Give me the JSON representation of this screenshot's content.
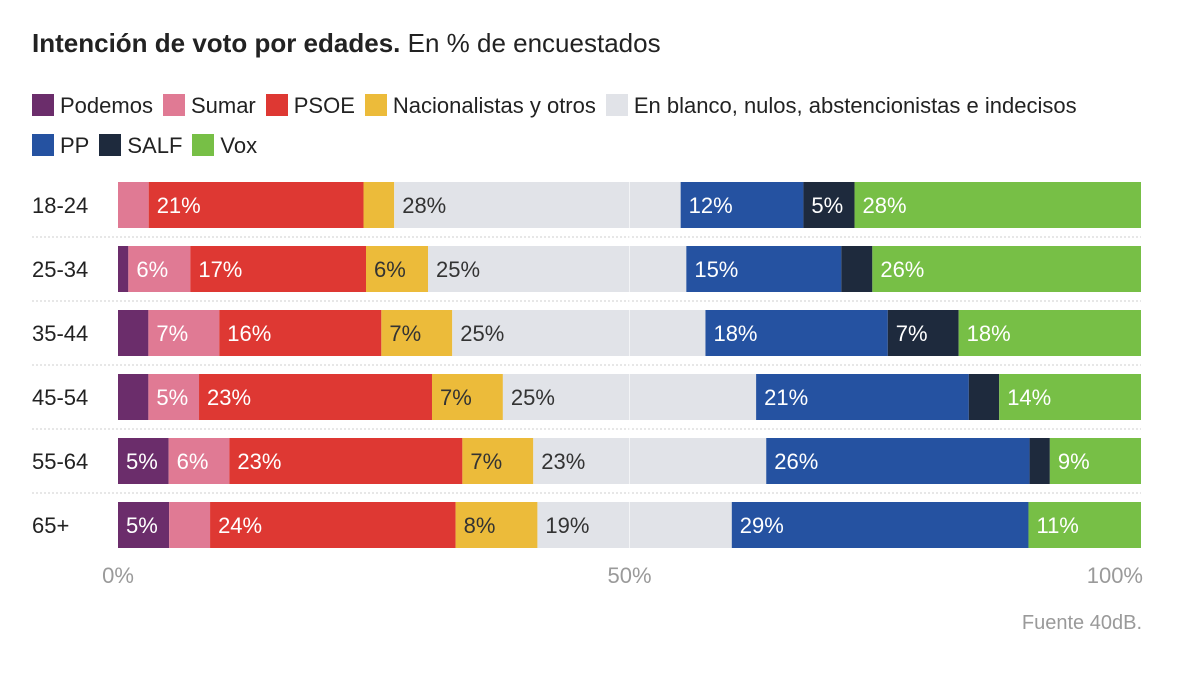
{
  "title_bold": "Intención de voto por edades.",
  "title_rest": "En % de encuestados",
  "source": "Fuente 40dB.",
  "colors": {
    "Podemos": "#6b2d6b",
    "Sumar": "#e07a94",
    "PSOE": "#de3833",
    "Nacionalistas y otros": "#ecbb3a",
    "En blanco, nulos, abstencionistas e indecisos": "#e1e3e8",
    "PP": "#2552a1",
    "SALF": "#1e2a3d",
    "Vox": "#77bf46"
  },
  "chart_data": {
    "type": "bar",
    "orientation": "horizontal",
    "stacked": true,
    "title": "Intención de voto por edades.",
    "subtitle": "En % de encuestados",
    "legend_position": "top",
    "xlim": [
      0,
      100
    ],
    "xticks": [
      "0%",
      "50%",
      "100%"
    ],
    "categories": [
      "18-24",
      "25-34",
      "35-44",
      "45-54",
      "55-64",
      "65+"
    ],
    "series": [
      {
        "name": "Podemos",
        "values": [
          0,
          1,
          3,
          3,
          5,
          5
        ],
        "labels": [
          "",
          "",
          "",
          "",
          "5%",
          "5%"
        ]
      },
      {
        "name": "Sumar",
        "values": [
          3,
          6,
          7,
          5,
          6,
          4
        ],
        "labels": [
          "",
          "6%",
          "7%",
          "5%",
          "6%",
          ""
        ]
      },
      {
        "name": "PSOE",
        "values": [
          21,
          17,
          16,
          23,
          23,
          24
        ],
        "labels": [
          "21%",
          "17%",
          "16%",
          "23%",
          "23%",
          "24%"
        ]
      },
      {
        "name": "Nacionalistas y otros",
        "values": [
          3,
          6,
          7,
          7,
          7,
          8
        ],
        "labels": [
          "",
          "6%",
          "7%",
          "7%",
          "7%",
          "8%"
        ]
      },
      {
        "name": "En blanco, nulos, abstencionistas e indecisos",
        "values": [
          28,
          25,
          25,
          25,
          23,
          19
        ],
        "labels": [
          "28%",
          "25%",
          "25%",
          "25%",
          "23%",
          "19%"
        ]
      },
      {
        "name": "PP",
        "values": [
          12,
          15,
          18,
          21,
          26,
          29
        ],
        "labels": [
          "12%",
          "15%",
          "18%",
          "21%",
          "26%",
          "29%"
        ]
      },
      {
        "name": "SALF",
        "values": [
          5,
          3,
          7,
          3,
          2,
          0
        ],
        "labels": [
          "5%",
          "",
          "7%",
          "",
          "",
          ""
        ]
      },
      {
        "name": "Vox",
        "values": [
          28,
          26,
          18,
          14,
          9,
          11
        ],
        "labels": [
          "28%",
          "26%",
          "18%",
          "14%",
          "9%",
          "11%"
        ]
      }
    ]
  }
}
